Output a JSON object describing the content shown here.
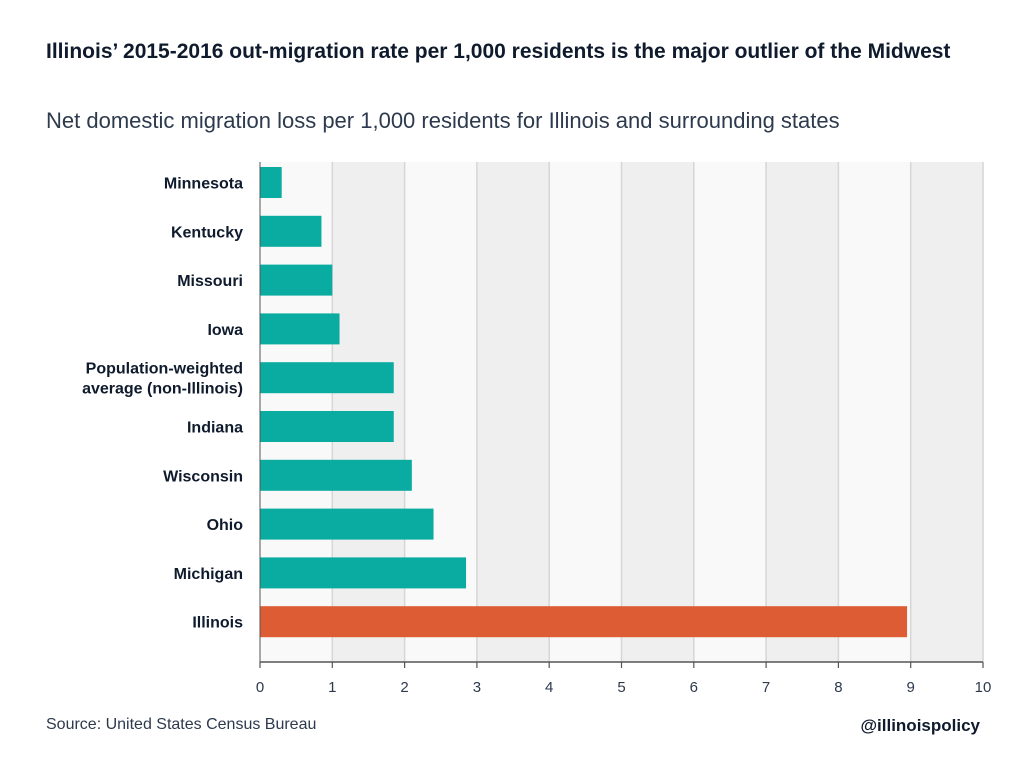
{
  "title": "Illinois’ 2015-2016 out-migration rate per 1,000 residents is the major outlier of the Midwest",
  "subtitle": "Net domestic migration loss per 1,000 residents for Illinois and surrounding states",
  "source": "Source: United States Census Bureau",
  "handle": "@illinoispolicy",
  "colors": {
    "bar": "#0aaba0",
    "highlight": "#dd5c33",
    "band_light": "#f9f9f9",
    "band_dark": "#efefef",
    "gridline": "#d6d6d6",
    "axis": "#555555",
    "label": "#0f1b2d"
  },
  "chart_data": {
    "type": "bar",
    "orientation": "horizontal",
    "categories": [
      "Minnesota",
      "Kentucky",
      "Missouri",
      "Iowa",
      "Population-weighted average (non-Illinois)",
      "Indiana",
      "Wisconsin",
      "Ohio",
      "Michigan",
      "Illinois"
    ],
    "label_lines": [
      [
        "Minnesota"
      ],
      [
        "Kentucky"
      ],
      [
        "Missouri"
      ],
      [
        "Iowa"
      ],
      [
        "Population-weighted",
        "average (non-Illinois)"
      ],
      [
        "Indiana"
      ],
      [
        "Wisconsin"
      ],
      [
        "Ohio"
      ],
      [
        "Michigan"
      ],
      [
        "Illinois"
      ]
    ],
    "values": [
      0.3,
      0.85,
      1.0,
      1.1,
      1.85,
      1.85,
      2.1,
      2.4,
      2.85,
      8.95
    ],
    "highlight": "Illinois",
    "xlim": [
      0,
      10
    ],
    "xticks": [
      "0",
      "1",
      "2",
      "3",
      "4",
      "5",
      "6",
      "7",
      "8",
      "9",
      "10"
    ],
    "xlabel": "",
    "ylabel": "",
    "grid": true,
    "legend": "none"
  }
}
